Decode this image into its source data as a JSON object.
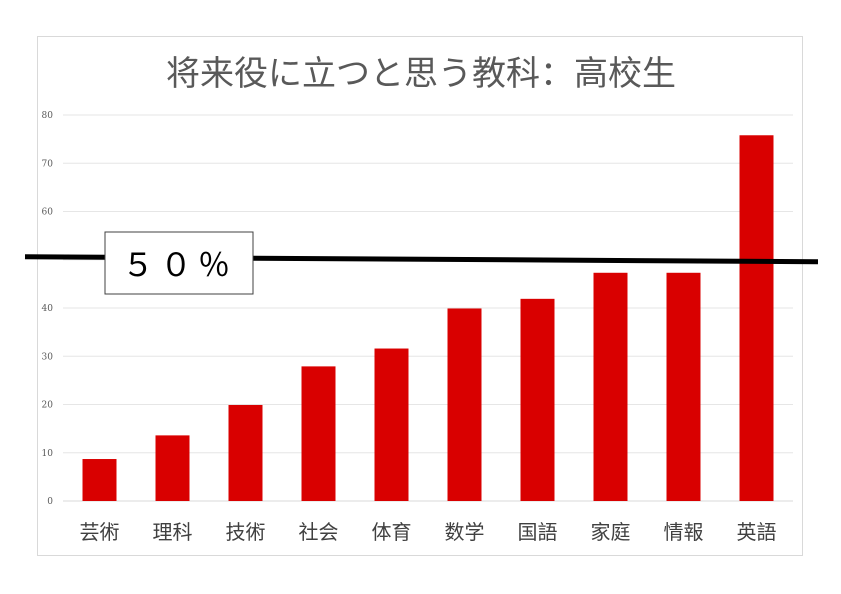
{
  "chart_data": {
    "type": "bar",
    "title": "将来役に立つと思う教科：高校生",
    "xlabel": "",
    "ylabel": "",
    "categories": [
      "芸術",
      "理科",
      "技術",
      "社会",
      "体育",
      "数学",
      "国語",
      "家庭",
      "情報",
      "英語"
    ],
    "values": [
      8.7,
      13.6,
      19.9,
      27.9,
      31.6,
      39.9,
      41.9,
      47.3,
      47.3,
      75.8
    ],
    "ylim": [
      0,
      80
    ],
    "yticks": [
      0,
      10,
      20,
      30,
      40,
      50,
      60,
      70,
      80
    ],
    "yticks_visible": [
      "0",
      "10",
      "20",
      "30",
      "40",
      "",
      "60",
      "70",
      "80"
    ],
    "grid": true,
    "bar_color": "#d90000",
    "reference_line": {
      "value": 50,
      "label": "５０％",
      "color": "#000000"
    }
  }
}
